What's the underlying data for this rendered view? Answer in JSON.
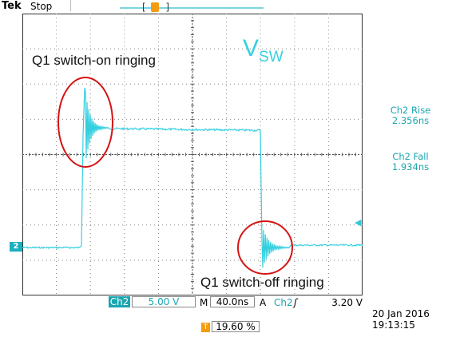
{
  "header": {
    "brand": "Tek",
    "status": "Stop"
  },
  "annotations": {
    "switch_on": "Q1 switch-on ringing",
    "switch_off": "Q1 switch-off ringing",
    "signal_main": "V",
    "signal_sub": "SW"
  },
  "measurements": {
    "rise_label": "Ch2 Rise",
    "rise_value": "2.356ns",
    "fall_label": "Ch2 Fall",
    "fall_value": "1.934ns"
  },
  "channel": {
    "marker": "2",
    "tag": "Ch2",
    "scale": "5.00 V"
  },
  "timebase": {
    "prefix": "M",
    "value": "40.0ns"
  },
  "trigger": {
    "mode": "A",
    "source": "Ch2",
    "slope": "ʃ",
    "level": "3.20 V",
    "marker_letter": "T",
    "position": "19.60 %"
  },
  "datetime": {
    "date": "20 Jan  2016",
    "time": "19:13:15"
  },
  "colors": {
    "trace": "#35d0e0",
    "grid": "#666666",
    "highlight": "#d41414",
    "trigger": "#f39c12"
  }
}
